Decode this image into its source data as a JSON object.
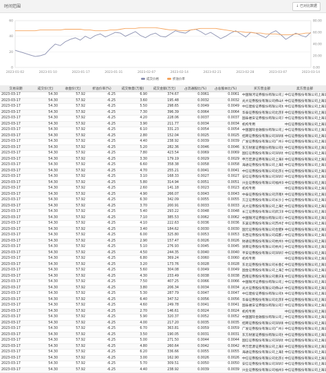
{
  "header": {
    "title": "时间范围",
    "action_label": "↓ 已对比数据"
  },
  "legend": {
    "items": [
      {
        "name": "成交价格",
        "color": "#8a8fb0"
      },
      {
        "name": "折溢价率",
        "color": "#f5a25a"
      }
    ]
  },
  "chart_data": {
    "type": "line",
    "x_ticks": [
      "2023-01-02",
      "2023-01-10",
      "2023-01-17",
      "2023-01-31",
      "2023-02-07",
      "2023-02-14",
      "2023-02-21",
      "2023-02-28",
      "2023-03-07",
      "2023-03-14"
    ],
    "left_ticks": [
      "60",
      "40",
      "20",
      "0"
    ],
    "right_ticks": [
      "80.00",
      "60.00",
      "40.00",
      "20.00",
      "0.00"
    ],
    "left_ylim": [
      0,
      60
    ],
    "series": [
      {
        "name": "成交价格",
        "color": "#8a8fb0",
        "values": [
          22,
          20,
          18,
          16,
          14,
          15,
          17,
          24,
          30,
          28,
          33,
          36,
          38,
          35,
          40,
          37,
          41,
          43,
          39,
          42,
          45,
          44,
          40,
          43,
          46,
          41,
          38,
          42,
          44,
          40,
          39,
          43,
          47,
          45,
          44,
          48,
          49,
          46,
          42,
          45,
          41,
          37,
          40,
          44,
          47,
          43,
          39,
          45,
          44,
          41,
          38,
          44,
          47,
          42,
          36,
          40,
          44,
          41,
          39,
          45
        ]
      },
      {
        "name": "折溢价率",
        "color": "#f5a25a",
        "values": [
          47,
          47,
          47,
          47,
          47,
          48,
          48,
          48,
          48,
          48,
          49,
          49,
          49,
          49,
          48,
          48,
          47,
          47,
          47,
          48,
          48,
          49,
          50,
          50,
          50,
          51,
          51,
          51,
          51,
          50,
          49,
          48,
          48,
          47,
          47,
          48,
          49,
          50,
          50,
          50,
          50,
          49,
          48,
          47,
          46,
          46,
          45,
          45,
          44,
          44,
          43,
          43,
          43,
          42,
          42,
          42,
          43,
          43,
          44,
          44
        ]
      }
    ]
  },
  "table": {
    "headers": [
      "交易日期",
      "成交价(元)",
      "收盘价(元)",
      "折溢价率(%)",
      "成交数量(万股)",
      "成交金额(万元)",
      "占流通股比(%)",
      "占总股本比(%)",
      "买方营业部",
      "卖方营业部"
    ],
    "rows": [
      [
        "2023-03-17",
        "54.30",
        "57.92",
        "-6.25",
        "6.90",
        "374.67",
        "0.0061",
        "0.0061",
        "中国银河证券股份有限公司上海虹桥...",
        "中信证券股份有限公司上海浦东..."
      ],
      [
        "2023-03-17",
        "54.30",
        "57.92",
        "-6.25",
        "3.60",
        "195.48",
        "0.0032",
        "0.0032",
        "光大证券股份有限公司佛山绿景路证...",
        "中信证券股份有限公司上海浦东..."
      ],
      [
        "2023-03-17",
        "54.30",
        "57.92",
        "-6.25",
        "5.50",
        "298.65",
        "0.0049",
        "0.0049",
        "中信建投证券股份有限公司杭州庆春...",
        "中信证券股份有限公司上海浦东..."
      ],
      [
        "2023-03-17",
        "54.30",
        "57.92",
        "-6.25",
        "7.30",
        "396.39",
        "0.0064",
        "0.0064",
        "华泰证券股份有限公司北京雍和宫证...",
        "中信证券股份有限公司上海浦东..."
      ],
      [
        "2023-03-17",
        "54.30",
        "57.92",
        "-6.25",
        "4.20",
        "228.06",
        "0.0037",
        "0.0037",
        "国泰君安证券股份有限公司深圳益田...",
        "中信证券股份有限公司上海浦东..."
      ],
      [
        "2023-03-17",
        "54.30",
        "57.92",
        "-6.25",
        "3.90",
        "211.77",
        "0.0034",
        "0.0034",
        "机构专用",
        "中信证券股份有限公司上海浦东..."
      ],
      [
        "2023-03-17",
        "54.30",
        "57.92",
        "-6.25",
        "6.10",
        "331.23",
        "0.0054",
        "0.0054",
        "中国国际金融股份有限公司上海分公...",
        "中信证券股份有限公司上海浦东..."
      ],
      [
        "2023-03-17",
        "54.30",
        "57.92",
        "-6.25",
        "2.80",
        "152.04",
        "0.0025",
        "0.0025",
        "招商证券股份有限公司深圳蛇口工业...",
        "中信证券股份有限公司上海浦东..."
      ],
      [
        "2023-03-17",
        "54.30",
        "57.92",
        "-6.25",
        "4.40",
        "238.92",
        "0.0039",
        "0.0039",
        "广发证券股份有限公司广州天河北路...",
        "中信证券股份有限公司上海浦东..."
      ],
      [
        "2023-03-17",
        "54.30",
        "57.92",
        "-6.25",
        "5.20",
        "282.36",
        "0.0046",
        "0.0046",
        "东方财富证券股份有限公司拉萨团结...",
        "中信证券股份有限公司上海浦东..."
      ],
      [
        "2023-03-17",
        "54.30",
        "57.92",
        "-6.25",
        "7.80",
        "423.54",
        "0.0069",
        "0.0069",
        "国信证券股份有限公司深圳红岭中路...",
        "中信证券股份有限公司上海浦东..."
      ],
      [
        "2023-03-17",
        "54.30",
        "57.92",
        "-6.25",
        "3.30",
        "179.19",
        "0.0029",
        "0.0029",
        "申万宏源证券有限公司上海闵行区东...",
        "中信证券股份有限公司上海浦东..."
      ],
      [
        "2023-03-17",
        "54.30",
        "57.92",
        "-6.25",
        "6.60",
        "358.38",
        "0.0058",
        "0.0058",
        "海通证券股份有限公司上海建国西路...",
        "中信证券股份有限公司上海浦东..."
      ],
      [
        "2023-03-17",
        "54.30",
        "57.92",
        "-6.25",
        "4.70",
        "255.21",
        "0.0041",
        "0.0041",
        "中信证券股份有限公司北京总部证券...",
        "中信证券股份有限公司上海浦东..."
      ],
      [
        "2023-03-17",
        "54.30",
        "57.92",
        "-6.25",
        "3.10",
        "168.33",
        "0.0027",
        "0.0027",
        "安信证券股份有限公司深圳深南大道...",
        "中信证券股份有限公司上海浦东..."
      ],
      [
        "2023-03-17",
        "54.30",
        "57.92",
        "-6.25",
        "5.80",
        "314.94",
        "0.0051",
        "0.0051",
        "兴业证券股份有限公司福州湖东路证...",
        "中信证券股份有限公司上海浦东..."
      ],
      [
        "2023-03-17",
        "54.30",
        "57.92",
        "-6.25",
        "2.60",
        "141.18",
        "0.0023",
        "0.0023",
        "机构专用",
        "中信证券股份有限公司上海浦东..."
      ],
      [
        "2023-03-17",
        "54.30",
        "57.92",
        "-6.25",
        "4.90",
        "266.07",
        "0.0043",
        "0.0043",
        "中泰证券股份有限公司济南经七路证...",
        "中信证券股份有限公司上海浦东..."
      ],
      [
        "2023-03-17",
        "54.30",
        "57.92",
        "-6.25",
        "6.30",
        "342.09",
        "0.0055",
        "0.0055",
        "方正证券股份有限公司长沙五一大道...",
        "中信证券股份有限公司上海浦东..."
      ],
      [
        "2023-03-17",
        "54.30",
        "57.92",
        "-6.25",
        "3.70",
        "200.91",
        "0.0033",
        "0.0033",
        "光大证券股份有限公司上海世纪大道...",
        "中信证券股份有限公司上海浦东..."
      ],
      [
        "2023-03-17",
        "54.30",
        "57.92",
        "-6.25",
        "5.40",
        "293.22",
        "0.0048",
        "0.0048",
        "长江证券股份有限公司武汉新华路证...",
        "中信证券股份有限公司上海浦东..."
      ],
      [
        "2023-03-17",
        "54.30",
        "57.92",
        "-6.25",
        "7.10",
        "385.53",
        "0.0062",
        "0.0062",
        "中国银河证券股份有限公司北京中关...",
        "中信证券股份有限公司上海浦东..."
      ],
      [
        "2023-03-17",
        "54.30",
        "57.92",
        "-6.25",
        "4.10",
        "222.63",
        "0.0036",
        "0.0036",
        "东吴证券股份有限公司苏州西北街证...",
        "中信证券股份有限公司上海浦东..."
      ],
      [
        "2023-03-17",
        "54.30",
        "57.92",
        "-6.25",
        "3.40",
        "184.62",
        "0.0030",
        "0.0030",
        "国元证券股份有限公司合肥梅山路证...",
        "中信证券股份有限公司上海浦东..."
      ],
      [
        "2023-03-17",
        "54.30",
        "57.92",
        "-6.25",
        "6.00",
        "325.80",
        "0.0053",
        "0.0053",
        "华西证券股份有限公司成都人民南路...",
        "中信证券股份有限公司上海浦东..."
      ],
      [
        "2023-03-17",
        "54.30",
        "57.92",
        "-6.25",
        "2.90",
        "157.47",
        "0.0026",
        "0.0026",
        "财通证券股份有限公司杭州体育场路...",
        "中信证券股份有限公司上海浦东..."
      ],
      [
        "2023-03-17",
        "54.30",
        "57.92",
        "-6.25",
        "5.10",
        "276.93",
        "0.0045",
        "0.0045",
        "浙商证券股份有限公司杭州五星路证...",
        "中信证券股份有限公司上海浦东..."
      ],
      [
        "2023-03-17",
        "54.30",
        "57.92",
        "-6.25",
        "4.50",
        "244.35",
        "0.0040",
        "0.0040",
        "平安证券股份有限公司深圳深南东路...",
        "中信证券股份有限公司上海浦东..."
      ],
      [
        "2023-03-17",
        "54.30",
        "57.92",
        "-6.25",
        "6.80",
        "369.24",
        "0.0060",
        "0.0060",
        "机构专用",
        "中信证券股份有限公司上海浦东..."
      ],
      [
        "2023-03-17",
        "54.30",
        "57.92",
        "-6.25",
        "3.20",
        "173.76",
        "0.0028",
        "0.0028",
        "东北证券股份有限公司长春自由大路...",
        "中信证券股份有限公司上海浦东..."
      ],
      [
        "2023-03-17",
        "54.30",
        "57.92",
        "-6.25",
        "5.60",
        "304.08",
        "0.0049",
        "0.0049",
        "国金证券股份有限公司上海互联网证...",
        "中信证券股份有限公司上海浦东..."
      ],
      [
        "2023-03-17",
        "54.30",
        "57.92",
        "-6.25",
        "4.30",
        "233.49",
        "0.0038",
        "0.0038",
        "西南证券股份有限公司重庆解放碑证...",
        "中信证券股份有限公司上海浦东..."
      ],
      [
        "2023-03-17",
        "54.30",
        "57.92",
        "-6.25",
        "7.50",
        "407.25",
        "0.0066",
        "0.0066",
        "中国银河证券股份有限公司上海虹桥...",
        "中信证券股份有限公司上海浦东..."
      ],
      [
        "2023-03-17",
        "54.30",
        "57.92",
        "-6.25",
        "3.80",
        "206.34",
        "0.0034",
        "0.0034",
        "光大证券股份有限公司佛山绿景路证...",
        "中信证券股份有限公司上海浦东..."
      ],
      [
        "2023-03-17",
        "54.30",
        "57.92",
        "-6.25",
        "5.30",
        "287.79",
        "0.0047",
        "0.0047",
        "中信建投证券股份有限公司杭州庆春...",
        "中信证券股份有限公司上海浦东..."
      ],
      [
        "2023-03-17",
        "54.30",
        "57.92",
        "-6.25",
        "6.40",
        "347.52",
        "0.0056",
        "0.0056",
        "华泰证券股份有限公司北京雍和宫证...",
        "中信证券股份有限公司上海浦东..."
      ],
      [
        "2023-03-17",
        "54.30",
        "57.92",
        "-6.25",
        "4.60",
        "249.78",
        "0.0041",
        "0.0041",
        "国泰君安证券股份有限公司深圳益田...",
        "中信证券股份有限公司上海浦东..."
      ],
      [
        "2023-03-17",
        "54.30",
        "57.92",
        "-6.25",
        "2.70",
        "146.61",
        "0.0024",
        "0.0024",
        "机构专用",
        "中信证券股份有限公司上海浦东..."
      ],
      [
        "2023-03-17",
        "54.30",
        "57.92",
        "-6.25",
        "5.90",
        "320.37",
        "0.0052",
        "0.0052",
        "中国国际金融股份有限公司上海分公...",
        "中信证券股份有限公司上海浦东..."
      ],
      [
        "2023-03-17",
        "54.30",
        "57.92",
        "-6.25",
        "4.00",
        "217.20",
        "0.0035",
        "0.0035",
        "招商证券股份有限公司深圳蛇口工业...",
        "中信证券股份有限公司上海浦东..."
      ],
      [
        "2023-03-17",
        "54.30",
        "57.92",
        "-6.25",
        "6.70",
        "363.81",
        "0.0059",
        "0.0059",
        "广发证券股份有限公司广州天河北路...",
        "中信证券股份有限公司上海浦东..."
      ],
      [
        "2023-03-17",
        "54.30",
        "57.92",
        "-6.25",
        "3.50",
        "190.05",
        "0.0031",
        "0.0031",
        "东方财富证券股份有限公司拉萨团结...",
        "中信证券股份有限公司上海浦东..."
      ],
      [
        "2023-03-17",
        "54.30",
        "57.92",
        "-6.25",
        "5.00",
        "271.50",
        "0.0044",
        "0.0044",
        "国信证券股份有限公司深圳红岭中路...",
        "中信证券股份有限公司上海浦东..."
      ],
      [
        "2023-03-17",
        "54.30",
        "57.92",
        "-6.25",
        "4.80",
        "260.64",
        "0.0042",
        "0.0042",
        "申万宏源证券有限公司上海闵行区东...",
        "中信证券股份有限公司上海浦东..."
      ],
      [
        "2023-03-17",
        "54.30",
        "57.92",
        "-6.25",
        "6.20",
        "336.66",
        "0.0055",
        "0.0055",
        "海通证券股份有限公司上海建国西路...",
        "中信证券股份有限公司上海浦东..."
      ],
      [
        "2023-03-17",
        "54.30",
        "57.92",
        "-6.25",
        "3.00",
        "162.90",
        "0.0026",
        "0.0026",
        "中信证券股份有限公司北京总部证券...",
        "中信证券股份有限公司上海浦东..."
      ],
      [
        "2023-03-17",
        "54.30",
        "57.92",
        "-6.25",
        "5.70",
        "309.51",
        "0.0050",
        "0.0050",
        "安信证券股份有限公司深圳深南大道...",
        "中信证券股份有限公司上海浦东..."
      ],
      [
        "2023-03-17",
        "54.30",
        "57.92",
        "-6.25",
        "4.40",
        "238.92",
        "0.0039",
        "0.0039",
        "兴业证券股份有限公司福州湖东路证...",
        "中信证券股份有限公司上海浦东..."
      ]
    ]
  }
}
